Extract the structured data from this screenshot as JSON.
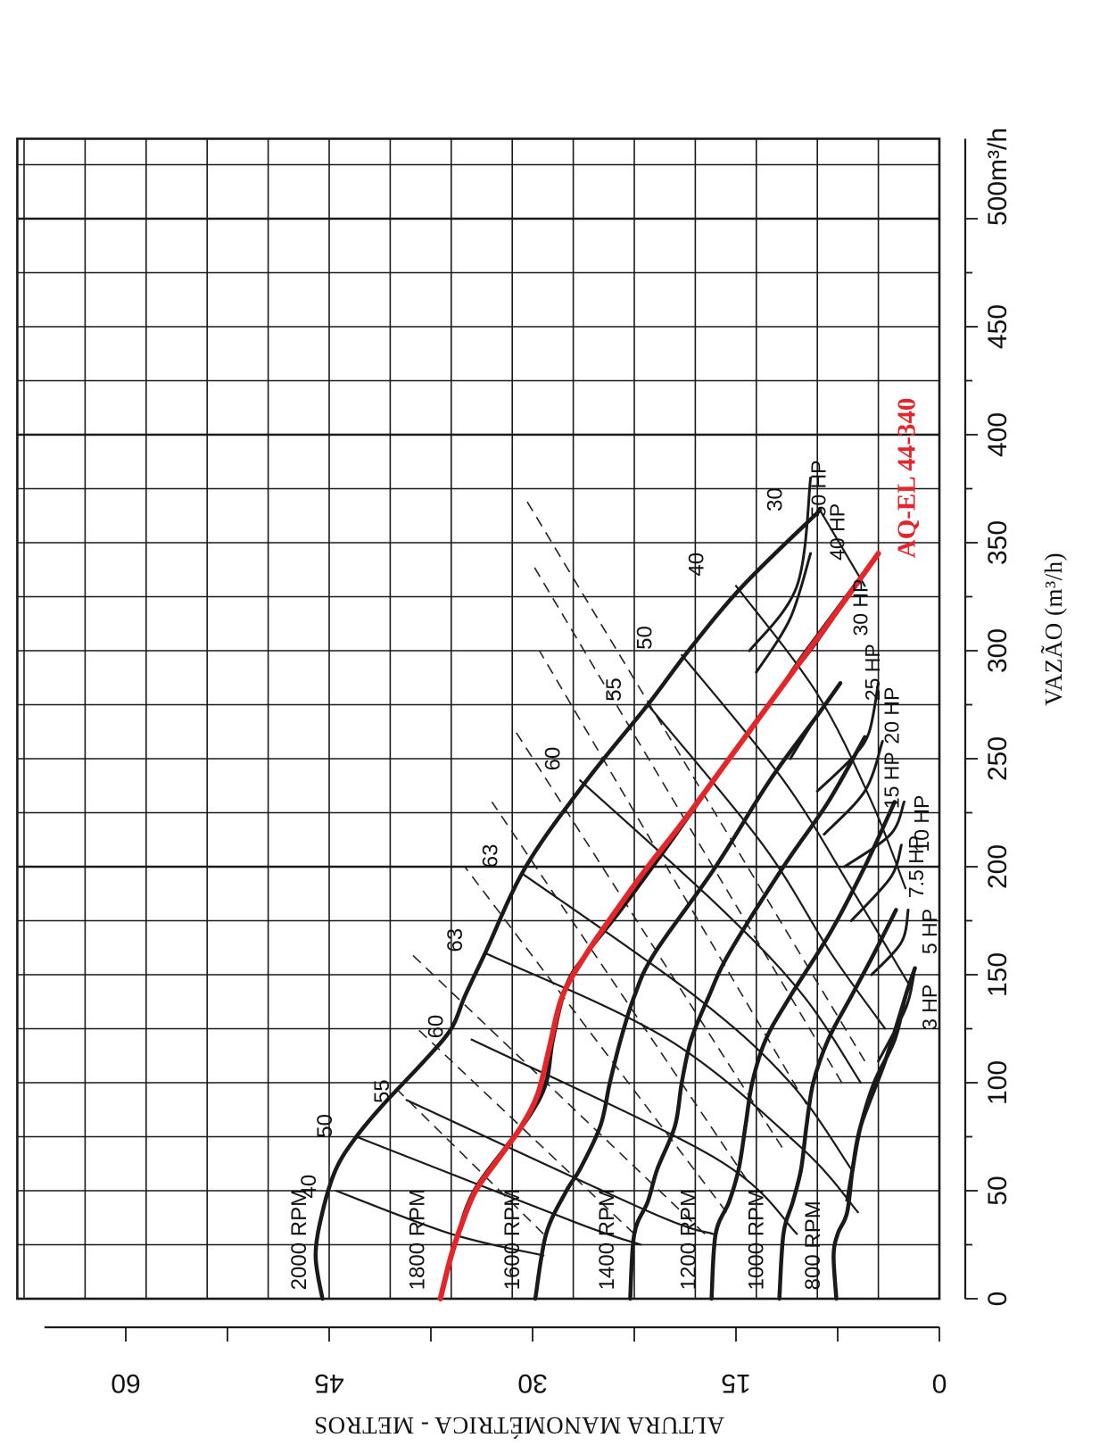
{
  "chart_data": {
    "type": "line",
    "orientation": "rotated-90-ccw",
    "model_label": "AQ-EL 44-340",
    "model_color": "#e4252a",
    "x_axis": {
      "title": "VAZÃO (m³/h)",
      "unit_label": "500m³/h",
      "range": [
        0,
        500
      ],
      "ticks": [
        0,
        50,
        100,
        150,
        200,
        250,
        300,
        350,
        400,
        450
      ],
      "tick_labels": [
        "0",
        "50",
        "100",
        "150",
        "200",
        "250",
        "300",
        "350",
        "400",
        "450"
      ]
    },
    "y_axis": {
      "title": "ALTURA MANOMÉTRICA - METROS",
      "range": [
        0,
        65
      ],
      "ticks": [
        0,
        15,
        30,
        45,
        60
      ],
      "tick_labels": [
        "0",
        "15",
        "30",
        "45",
        "60"
      ]
    },
    "grid": true,
    "rpm_curves": [
      {
        "name": "2000 RPM",
        "points": [
          [
            0,
            45.5
          ],
          [
            20,
            46
          ],
          [
            40,
            45.5
          ],
          [
            60,
            44.5
          ],
          [
            75,
            43
          ],
          [
            90,
            41
          ],
          [
            110,
            38
          ],
          [
            125,
            36
          ],
          [
            140,
            35
          ],
          [
            160,
            33.5
          ],
          [
            200,
            30.5
          ],
          [
            240,
            26
          ],
          [
            275,
            21.5
          ],
          [
            300,
            18.5
          ],
          [
            330,
            14.5
          ],
          [
            365,
            8.8
          ]
        ]
      },
      {
        "name": "1800 RPM",
        "points": [
          [
            0,
            36.8
          ],
          [
            30,
            35.5
          ],
          [
            50,
            34.3
          ],
          [
            70,
            32
          ],
          [
            85,
            30.2
          ],
          [
            100,
            29
          ],
          [
            120,
            28.5
          ],
          [
            145,
            27.5
          ],
          [
            160,
            26
          ],
          [
            180,
            23.5
          ],
          [
            210,
            20
          ],
          [
            250,
            15.5
          ],
          [
            280,
            12
          ],
          [
            300,
            9.8
          ],
          [
            345,
            4.5
          ]
        ]
      },
      {
        "name": "1600 RPM",
        "points": [
          [
            0,
            29.8
          ],
          [
            30,
            29
          ],
          [
            50,
            27.5
          ],
          [
            60,
            26.5
          ],
          [
            80,
            25
          ],
          [
            100,
            24.3
          ],
          [
            120,
            23.5
          ],
          [
            140,
            22.5
          ],
          [
            160,
            21
          ],
          [
            200,
            16.5
          ],
          [
            240,
            12.5
          ],
          [
            270,
            9
          ],
          [
            285,
            7.3
          ]
        ]
      },
      {
        "name": "1400 RPM",
        "points": [
          [
            0,
            22.8
          ],
          [
            30,
            22.5
          ],
          [
            45,
            21.5
          ],
          [
            60,
            20.8
          ],
          [
            80,
            19.5
          ],
          [
            100,
            19
          ],
          [
            120,
            18.3
          ],
          [
            140,
            17
          ],
          [
            160,
            15.5
          ],
          [
            200,
            11.5
          ],
          [
            230,
            8.2
          ],
          [
            260,
            5.5
          ]
        ]
      },
      {
        "name": "1200 RPM",
        "points": [
          [
            0,
            16.8
          ],
          [
            30,
            16.5
          ],
          [
            45,
            15.5
          ],
          [
            60,
            14.8
          ],
          [
            80,
            14.3
          ],
          [
            100,
            13.8
          ],
          [
            120,
            12.8
          ],
          [
            140,
            11
          ],
          [
            170,
            8
          ],
          [
            200,
            5.5
          ],
          [
            230,
            3.3
          ]
        ]
      },
      {
        "name": "1000 RPM",
        "points": [
          [
            0,
            11.8
          ],
          [
            30,
            11.5
          ],
          [
            45,
            10.8
          ],
          [
            60,
            10.2
          ],
          [
            80,
            9.8
          ],
          [
            100,
            9.3
          ],
          [
            120,
            8.2
          ],
          [
            140,
            6.5
          ],
          [
            160,
            4.8
          ],
          [
            180,
            3.2
          ]
        ]
      },
      {
        "name": "800 RPM",
        "points": [
          [
            0,
            7.6
          ],
          [
            20,
            7.8
          ],
          [
            30,
            7.5
          ],
          [
            40,
            6.8
          ],
          [
            60,
            6.4
          ],
          [
            80,
            5.8
          ],
          [
            100,
            4.8
          ],
          [
            120,
            3.3
          ],
          [
            140,
            2.5
          ],
          [
            153,
            1.8
          ]
        ]
      }
    ],
    "efficiency_curves": [
      {
        "label": "40",
        "points": [
          [
            50,
            44.5
          ],
          [
            30,
            36
          ],
          [
            20,
            29.2
          ]
        ]
      },
      {
        "label": "50",
        "points": [
          [
            75,
            43
          ],
          [
            35,
            26.7
          ],
          [
            25,
            22
          ]
        ]
      },
      {
        "label": "55",
        "points": [
          [
            92,
            39.3
          ],
          [
            40,
            21.3
          ],
          [
            30,
            16.7
          ]
        ]
      },
      {
        "label": "60",
        "points": [
          [
            120,
            34.5
          ],
          [
            65,
            16.5
          ],
          [
            30,
            10.5
          ]
        ]
      },
      {
        "label": "63",
        "points": [
          [
            160,
            33.5
          ],
          [
            120,
            20
          ],
          [
            70,
            10.2
          ],
          [
            40,
            6
          ]
        ]
      },
      {
        "label": "63",
        "points": [
          [
            197,
            30.8
          ],
          [
            140,
            18
          ],
          [
            100,
            11
          ],
          [
            60,
            6.5
          ]
        ]
      },
      {
        "label": "60",
        "points": [
          [
            240,
            26.5
          ],
          [
            180,
            16
          ],
          [
            140,
            10
          ],
          [
            100,
            5.8
          ]
        ]
      },
      {
        "label": "55",
        "points": [
          [
            275,
            21.5
          ],
          [
            210,
            13
          ],
          [
            160,
            8
          ],
          [
            125,
            4
          ]
        ]
      },
      {
        "label": "50",
        "points": [
          [
            298,
            19
          ],
          [
            240,
            11.5
          ],
          [
            190,
            6.5
          ],
          [
            145,
            2.2
          ]
        ]
      },
      {
        "label": "40",
        "points": [
          [
            330,
            15
          ],
          [
            280,
            9
          ],
          [
            230,
            5
          ],
          [
            190,
            2.5
          ]
        ]
      },
      {
        "label": "30",
        "points": [
          [
            365,
            8.8
          ],
          [
            330,
            5.5
          ]
        ]
      }
    ],
    "efficiency_labels": [
      {
        "label": "40",
        "at": [
          52,
          46
        ]
      },
      {
        "label": "50",
        "at": [
          80,
          44.8
        ]
      },
      {
        "label": "55",
        "at": [
          96,
          40.6
        ]
      },
      {
        "label": "60",
        "at": [
          126,
          36.6
        ]
      },
      {
        "label": "63",
        "at": [
          166,
          35.2
        ]
      },
      {
        "label": "63",
        "at": [
          205,
          32.6
        ]
      },
      {
        "label": "60",
        "at": [
          250,
          28
        ]
      },
      {
        "label": "55",
        "at": [
          282,
          23.5
        ]
      },
      {
        "label": "50",
        "at": [
          306,
          21.2
        ]
      },
      {
        "label": "40",
        "at": [
          340,
          17.4
        ]
      },
      {
        "label": "30",
        "at": [
          370,
          11.6
        ]
      }
    ],
    "power_curves": [
      {
        "label": "3 HP",
        "points": [
          [
            110,
            4.5
          ],
          [
            130,
            2.8
          ],
          [
            140,
            2.2
          ],
          [
            153,
            1.8
          ]
        ],
        "label_at": [
          135,
          0.2
        ]
      },
      {
        "label": "5 HP",
        "points": [
          [
            150,
            5
          ],
          [
            165,
            2.8
          ],
          [
            180,
            2.3
          ]
        ],
        "label_at": [
          170,
          0.2
        ]
      },
      {
        "label": "7.5 HP",
        "points": [
          [
            175,
            6.5
          ],
          [
            195,
            3.6
          ],
          [
            210,
            2.8
          ]
        ],
        "label_at": [
          200,
          1.2
        ]
      },
      {
        "label": "10 HP",
        "points": [
          [
            200,
            7
          ],
          [
            215,
            3.6
          ],
          [
            230,
            2.6
          ]
        ],
        "label_at": [
          220,
          0.8
        ]
      },
      {
        "label": "15 HP",
        "points": [
          [
            215,
            8.5
          ],
          [
            235,
            5.5
          ],
          [
            258,
            4.2
          ]
        ],
        "label_at": [
          240,
          3
        ]
      },
      {
        "label": "20 HP",
        "points": [
          [
            235,
            9
          ],
          [
            250,
            6.5
          ],
          [
            262,
            5.2
          ],
          [
            285,
            4.5
          ]
        ],
        "label_at": [
          270,
          3
        ]
      },
      {
        "label": "25 HP",
        "points": [
          [
            250,
            11
          ],
          [
            270,
            9
          ],
          [
            285,
            7.3
          ]
        ],
        "label_at": [
          290,
          4.4
        ]
      },
      {
        "label": "30 HP",
        "points": [
          [
            280,
            12
          ],
          [
            300,
            9.5
          ],
          [
            315,
            7.8
          ]
        ],
        "label_at": [
          320,
          5.3
        ]
      },
      {
        "label": "40 HP",
        "points": [
          [
            290,
            13.5
          ],
          [
            315,
            11
          ],
          [
            345,
            9.5
          ]
        ],
        "label_at": [
          355,
          7
        ]
      },
      {
        "label": "50 HP",
        "points": [
          [
            300,
            14
          ],
          [
            330,
            10.5
          ],
          [
            380,
            9.5
          ]
        ],
        "label_at": [
          375,
          8.4
        ]
      }
    ],
    "envelope": {
      "points": [
        [
          140,
          2.5
        ],
        [
          110,
          4
        ],
        [
          80,
          5.8
        ],
        [
          60,
          6.4
        ],
        [
          45,
          6.8
        ]
      ]
    },
    "best_efficiency_lines": [
      [
        [
          30,
          29.2
        ],
        [
          100,
          40.5
        ]
      ],
      [
        [
          30,
          22.5
        ],
        [
          125,
          38.5
        ]
      ],
      [
        [
          30,
          17.3
        ],
        [
          160,
          39
        ]
      ],
      [
        [
          40,
          15.7
        ],
        [
          200,
          35
        ]
      ],
      [
        [
          55,
          14.2
        ],
        [
          230,
          33
        ]
      ],
      [
        [
          70,
          11.6
        ],
        [
          265,
          31.5
        ]
      ],
      [
        [
          90,
          9.8
        ],
        [
          300,
          29.5
        ]
      ],
      [
        [
          100,
          7.2
        ],
        [
          340,
          30
        ]
      ],
      [
        [
          110,
          5.5
        ],
        [
          370,
          30.5
        ]
      ]
    ],
    "model_curve": {
      "label": "AQ-EL 44-340",
      "points": [
        [
          0,
          36.8
        ],
        [
          20,
          36
        ],
        [
          35,
          35.2
        ],
        [
          50,
          34.2
        ],
        [
          65,
          32.5
        ],
        [
          80,
          30.8
        ],
        [
          95,
          29.6
        ],
        [
          115,
          28.8
        ],
        [
          140,
          27.8
        ],
        [
          160,
          26
        ],
        [
          180,
          23.8
        ],
        [
          200,
          21.5
        ],
        [
          220,
          19
        ],
        [
          250,
          15.5
        ],
        [
          280,
          12
        ],
        [
          310,
          8.5
        ],
        [
          345,
          4.5
        ]
      ],
      "label_at": [
        380,
        1.8
      ]
    }
  }
}
